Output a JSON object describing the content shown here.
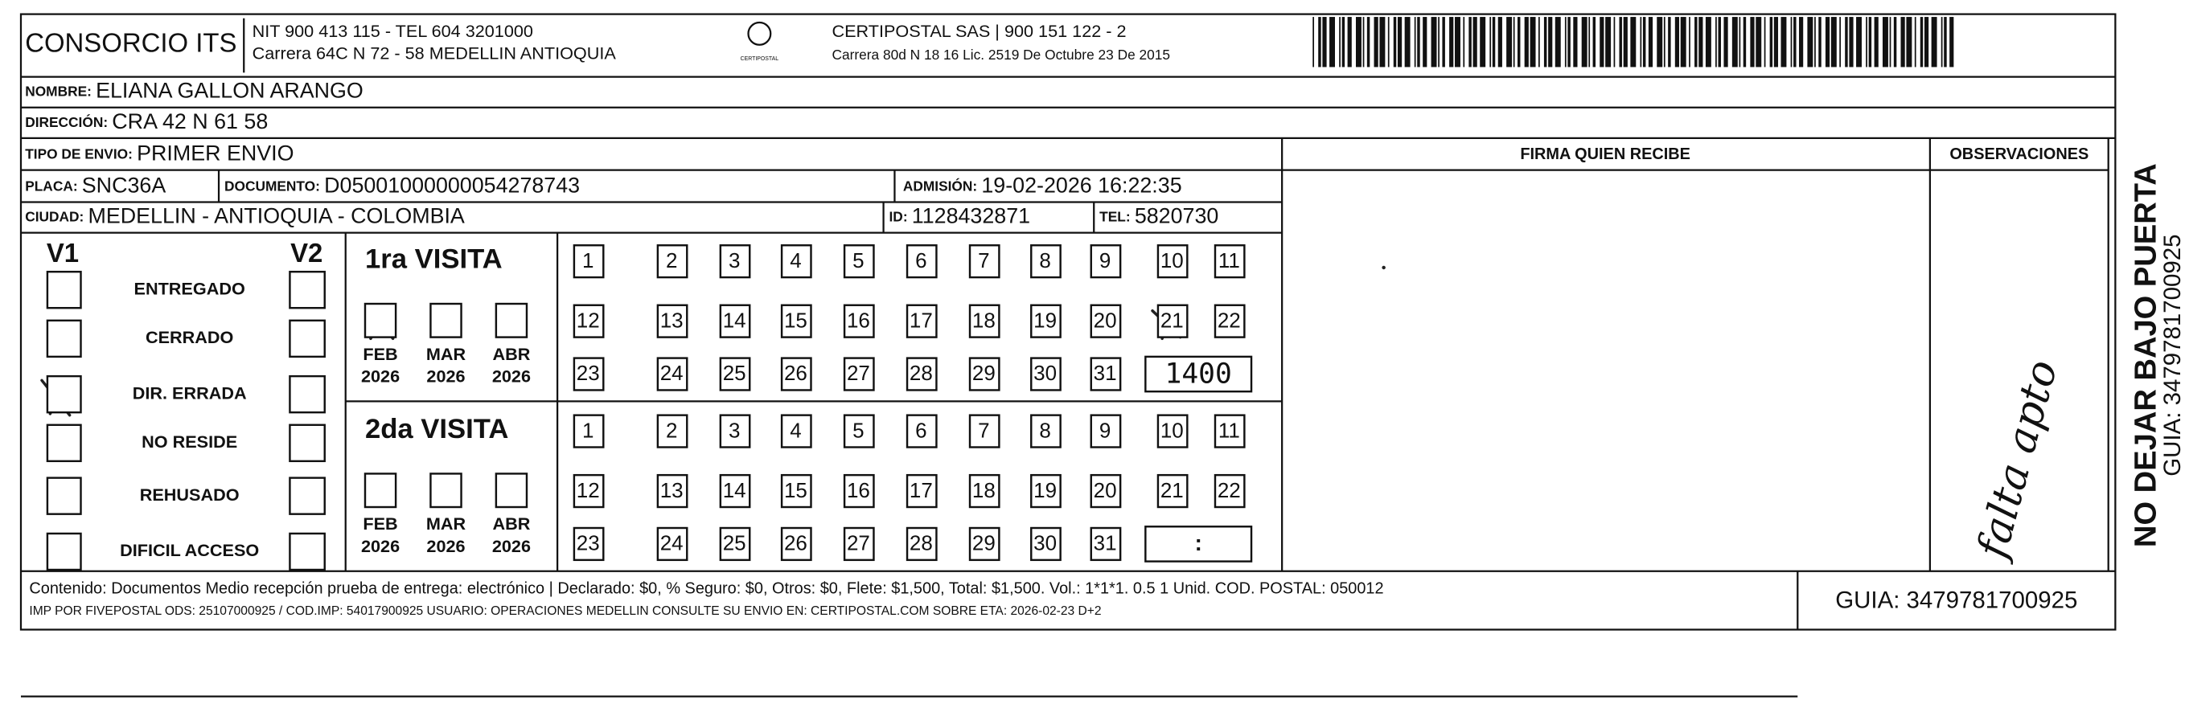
{
  "header": {
    "company": "CONSORCIO ITS",
    "nit": "NIT 900 413 115 - TEL 604 3201000",
    "address": "Carrera 64C N 72 - 58 MEDELLIN ANTIOQUIA",
    "logo": "CERTIPOSTAL",
    "carrier": "CERTIPOSTAL SAS | 900 151 122 - 2",
    "carrier_address": "Carrera 80d N 18 16  Lic. 2519 De Octubre 23 De 2015"
  },
  "fields": {
    "nombre": {
      "label": "NOMBRE:",
      "value": "ELIANA GALLON ARANGO"
    },
    "direccion": {
      "label": "DIRECCIÓN:",
      "value": "CRA 42 N   61   58"
    },
    "tipo": {
      "label": "TIPO DE ENVIO:",
      "value": "PRIMER ENVIO"
    },
    "placa": {
      "label": "PLACA:",
      "value": "SNC36A"
    },
    "documento": {
      "label": "DOCUMENTO:",
      "value": "D05001000000054278743"
    },
    "admision": {
      "label": "ADMISIÓN:",
      "value": "19-02-2026 16:22:35"
    },
    "ciudad": {
      "label": "CIUDAD:",
      "value": "MEDELLIN - ANTIOQUIA - COLOMBIA"
    },
    "id": {
      "label": "ID:",
      "value": "1128432871"
    },
    "tel": {
      "label": "TEL:",
      "value": "5820730"
    }
  },
  "firma": "FIRMA QUIEN RECIBE",
  "observaciones": "OBSERVACIONES",
  "note": "falta apto",
  "status": {
    "v1": "V1",
    "v2": "V2",
    "reasons": [
      "ENTREGADO",
      "CERRADO",
      "DIR. ERRADA",
      "NO RESIDE",
      "REHUSADO",
      "DIFICIL ACCESO"
    ]
  },
  "visits": [
    {
      "title": "1ra VISITA",
      "months": [
        {
          "month": "FEB",
          "year": "2026"
        },
        {
          "month": "MAR",
          "year": "2026"
        },
        {
          "month": "ABR",
          "year": "2026"
        }
      ],
      "days": [
        1,
        2,
        3,
        4,
        5,
        6,
        7,
        8,
        9,
        10,
        11,
        12,
        13,
        14,
        15,
        16,
        17,
        18,
        19,
        20,
        21,
        22,
        23,
        24,
        25,
        26,
        27,
        28,
        29,
        30,
        31
      ],
      "time": "1400"
    },
    {
      "title": "2da VISITA",
      "months": [
        {
          "month": "FEB",
          "year": "2026"
        },
        {
          "month": "MAR",
          "year": "2026"
        },
        {
          "month": "ABR",
          "year": "2026"
        }
      ],
      "days": [
        1,
        2,
        3,
        4,
        5,
        6,
        7,
        8,
        9,
        10,
        11,
        12,
        13,
        14,
        15,
        16,
        17,
        18,
        19,
        20,
        21,
        22,
        23,
        24,
        25,
        26,
        27,
        28,
        29,
        30,
        31
      ],
      "time": ":"
    }
  ],
  "footer": {
    "contenido": "Contenido: Documentos Medio recepción prueba de entrega: electrónico | Declarado: $0, % Seguro: $0, Otros: $0, Flete: $1,500, Total: $1,500. Vol.: 1*1*1. 0.5  1 Unid. COD. POSTAL: 050012",
    "imp": "IMP POR FIVEPOSTAL ODS: 25107000925 / COD.IMP: 54017900925 USUARIO: OPERACIONES MEDELLIN CONSULTE SU ENVIO EN: CERTIPOSTAL.COM SOBRE ETA: 2026-02-23 D+2",
    "guia": "GUIA: 3479781700925"
  },
  "side": {
    "warning": "NO DEJAR BAJO PUERTA",
    "guia": "GUIA: 3479781700925"
  }
}
